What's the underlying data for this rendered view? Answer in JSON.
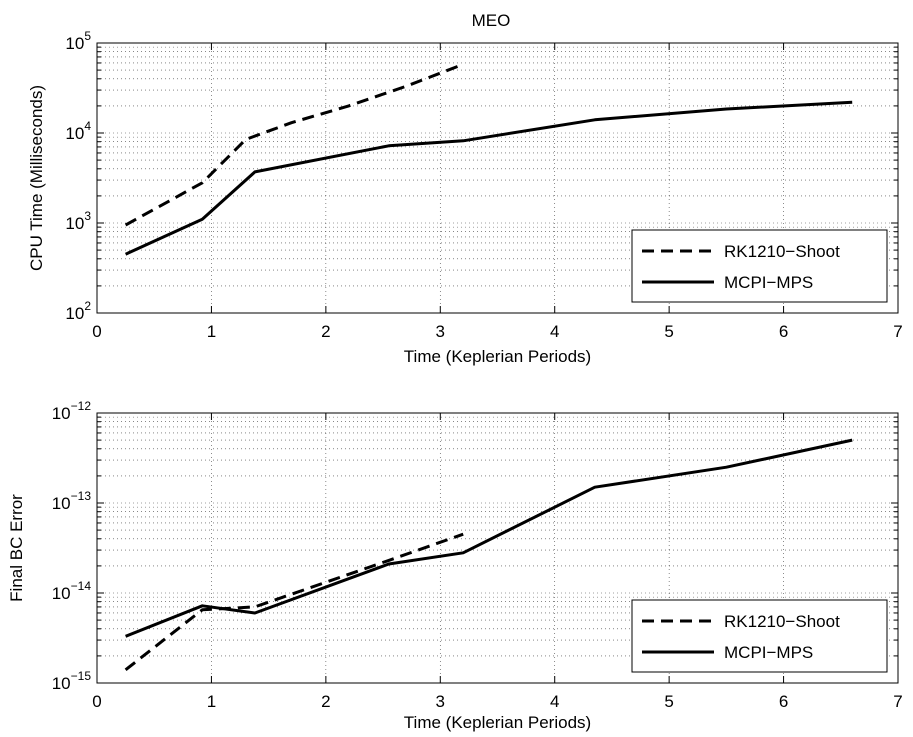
{
  "figure_title": "MEO",
  "chart_data": [
    {
      "type": "line",
      "title": "MEO",
      "xlabel": "Time (Keplerian Periods)",
      "ylabel": "CPU Time (Milliseconds)",
      "xlim": [
        0,
        7
      ],
      "ylim": [
        100,
        100000
      ],
      "yscale": "log",
      "grid": true,
      "legend": "bottom-right",
      "x_ticks": [
        "0",
        "1",
        "2",
        "3",
        "4",
        "5",
        "6",
        "7"
      ],
      "y_ticks": [
        {
          "base": "10",
          "exp": "2"
        },
        {
          "base": "10",
          "exp": "3"
        },
        {
          "base": "10",
          "exp": "4"
        },
        {
          "base": "10",
          "exp": "5"
        }
      ],
      "series": [
        {
          "name": "RK1210−Shoot",
          "style": "dashed",
          "x": [
            0.25,
            0.92,
            1.3,
            1.7,
            2.2,
            2.7,
            3.2
          ],
          "y": [
            950,
            2800,
            8500,
            13000,
            20000,
            33000,
            58000
          ]
        },
        {
          "name": "MCPI−MPS",
          "style": "solid",
          "x": [
            0.25,
            0.92,
            1.38,
            2.55,
            3.2,
            4.35,
            5.5,
            6.6
          ],
          "y": [
            450,
            1100,
            3700,
            7200,
            8200,
            14000,
            18500,
            22000
          ]
        }
      ]
    },
    {
      "type": "line",
      "title": "",
      "xlabel": "Time (Keplerian Periods)",
      "ylabel": "Final BC Error",
      "xlim": [
        0,
        7
      ],
      "ylim": [
        1e-15,
        1e-12
      ],
      "yscale": "log",
      "grid": true,
      "legend": "bottom-right",
      "x_ticks": [
        "0",
        "1",
        "2",
        "3",
        "4",
        "5",
        "6",
        "7"
      ],
      "y_ticks": [
        {
          "base": "10",
          "exp": "−15"
        },
        {
          "base": "10",
          "exp": "−14"
        },
        {
          "base": "10",
          "exp": "−13"
        },
        {
          "base": "10",
          "exp": "−12"
        }
      ],
      "series": [
        {
          "name": "RK1210−Shoot",
          "style": "dashed",
          "x": [
            0.25,
            0.92,
            1.38,
            2.55,
            3.2
          ],
          "y": [
            1.4e-15,
            6.5e-15,
            7e-15,
            2.3e-14,
            4.5e-14
          ]
        },
        {
          "name": "MCPI−MPS",
          "style": "solid",
          "x": [
            0.25,
            0.92,
            1.38,
            2.55,
            3.2,
            4.35,
            5.5,
            6.6
          ],
          "y": [
            3.3e-15,
            7.2e-15,
            6e-15,
            2.1e-14,
            2.8e-14,
            1.5e-13,
            2.5e-13,
            5e-13
          ]
        }
      ]
    }
  ]
}
